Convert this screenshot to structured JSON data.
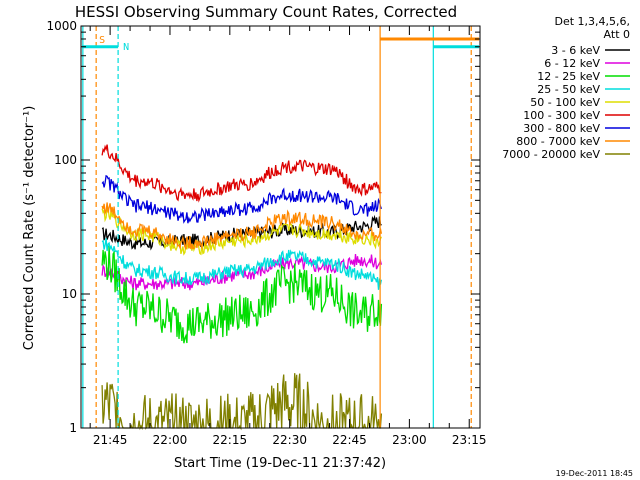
{
  "chart_data": {
    "type": "line",
    "title": "HESSI Observing Summary Count Rates, Corrected",
    "xlabel": "Start Time (19-Dec-11 21:37:42)",
    "ylabel": "Corrected Count Rate (s⁻¹ detector⁻¹)",
    "yscale": "log",
    "ylim": [
      1,
      1000
    ],
    "xlim": [
      "21:37:42",
      "23:17:42"
    ],
    "x_ticks": [
      "21:45",
      "22:00",
      "22:15",
      "22:30",
      "22:45",
      "23:00",
      "23:15"
    ],
    "y_ticks": [
      "1",
      "10",
      "100",
      "1000"
    ],
    "legend_header": [
      "Det 1,3,4,5,6,",
      "Att 0"
    ],
    "legend_position": "right",
    "footer_date": "19-Dec-2011 18:45",
    "flag_labels": [
      "S",
      "N"
    ],
    "series": [
      {
        "name": "3 - 6 keV",
        "color": "#000000",
        "values": [
          28,
          24,
          25,
          28,
          30,
          29,
          32,
          35
        ]
      },
      {
        "name": "6 - 12 keV",
        "color": "#dd00dd",
        "values": [
          15,
          12,
          12,
          14,
          17,
          16,
          18,
          17
        ]
      },
      {
        "name": "12 - 25 keV",
        "color": "#00dd00",
        "values": [
          18,
          8,
          6,
          7,
          12,
          10,
          7,
          8
        ]
      },
      {
        "name": "25 - 50 keV",
        "color": "#00dddd",
        "values": [
          24,
          15,
          13,
          15,
          19,
          17,
          14,
          12
        ]
      },
      {
        "name": "50 - 100 keV",
        "color": "#dddd00",
        "values": [
          40,
          28,
          22,
          25,
          30,
          28,
          26,
          24
        ]
      },
      {
        "name": "100 - 300 keV",
        "color": "#dd0000",
        "values": [
          120,
          70,
          55,
          65,
          90,
          85,
          60,
          62
        ]
      },
      {
        "name": "300 - 800 keV",
        "color": "#0000dd",
        "values": [
          70,
          45,
          38,
          43,
          55,
          52,
          42,
          45
        ]
      },
      {
        "name": "800 - 7000 keV",
        "color": "#ff8800",
        "values": [
          45,
          30,
          24,
          28,
          37,
          34,
          27,
          28
        ]
      },
      {
        "name": "7000 - 20000 keV",
        "color": "#808000",
        "values": [
          1.5,
          1.0,
          1.0,
          1.0,
          1.5,
          1.0,
          1.0,
          1.0
        ]
      }
    ],
    "series_times": [
      "21:43",
      "21:52",
      "22:05",
      "22:18",
      "22:30",
      "22:40",
      "22:48",
      "22:53"
    ]
  }
}
